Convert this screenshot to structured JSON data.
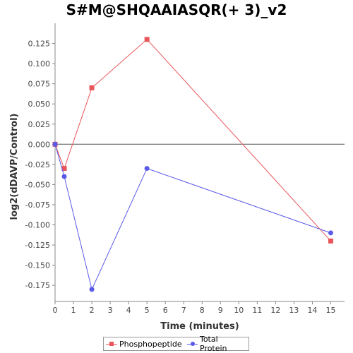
{
  "chart_data": {
    "type": "line",
    "title": "S#M@SHQAAIASQR(+ 3)_v2",
    "xlabel": "Time (minutes)",
    "ylabel": "log2(dDAVP/Control)",
    "xlim": [
      0,
      15.75
    ],
    "ylim": [
      -0.195,
      0.15
    ],
    "x_ticks": [
      0,
      1,
      2,
      3,
      4,
      5,
      6,
      7,
      8,
      9,
      10,
      11,
      12,
      13,
      14,
      15
    ],
    "y_ticks": [
      0.125,
      0.1,
      0.075,
      0.05,
      0.025,
      0.0,
      -0.025,
      -0.05,
      -0.075,
      -0.1,
      -0.125,
      -0.15,
      -0.175
    ],
    "y_tick_labels": [
      "0.125",
      "0.100",
      "0.075",
      "0.050",
      "0.025",
      "0.000",
      "-0.025",
      "-0.050",
      "-0.075",
      "-0.100",
      "-0.125",
      "-0.150",
      "-0.175"
    ],
    "zero_line": true,
    "grid": false,
    "legend_position": "bottom",
    "series": [
      {
        "name": "Phosphopeptide",
        "color": "#e8555a",
        "marker": "square",
        "x": [
          0,
          0.5,
          2,
          5,
          15
        ],
        "y": [
          0.0,
          -0.03,
          0.07,
          0.13,
          -0.12
        ]
      },
      {
        "name": "Total Protein",
        "color": "#5a5ae8",
        "marker": "circle",
        "x": [
          0,
          0.5,
          2,
          5,
          15
        ],
        "y": [
          0.0,
          -0.04,
          -0.18,
          -0.03,
          -0.11
        ]
      }
    ]
  }
}
